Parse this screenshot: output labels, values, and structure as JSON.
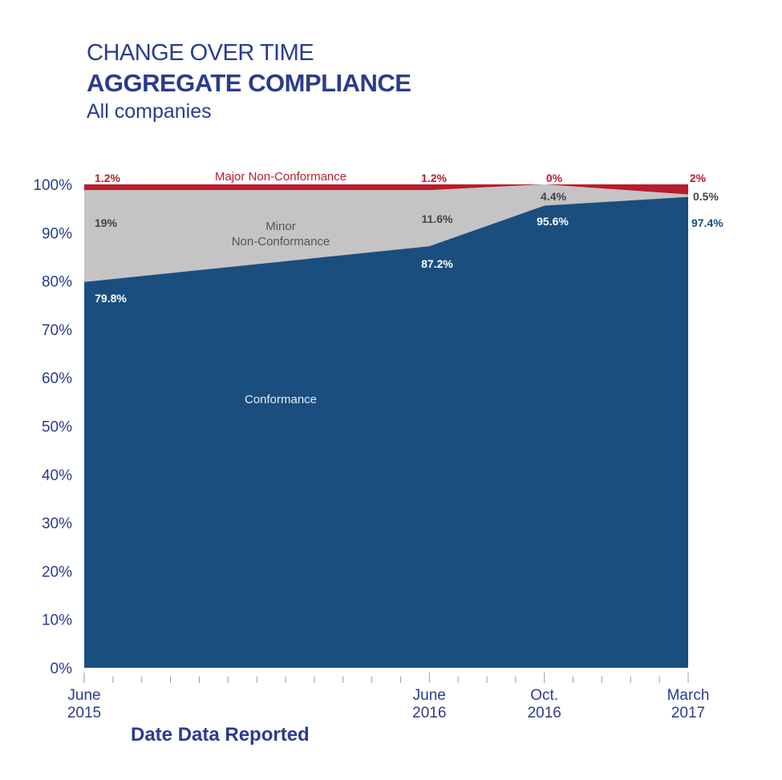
{
  "header": {
    "line1": "CHANGE OVER TIME",
    "line2": "AGGREGATE COMPLIANCE",
    "line3": "All companies"
  },
  "colors": {
    "conformance": "#1a4e7e",
    "minor": "#c6c3c5",
    "major": "#b91c2b",
    "axis_text": "#2a3c8e",
    "label_dark": "#444444"
  },
  "chart_data": {
    "type": "area",
    "stacked": true,
    "xlabel": "Date Data Reported",
    "ylabel": "",
    "ylim": [
      0,
      100
    ],
    "yticks": [
      "0%",
      "10%",
      "20%",
      "30%",
      "40%",
      "50%",
      "60%",
      "70%",
      "80%",
      "90%",
      "100%"
    ],
    "x": [
      "June 2015",
      "June 2016",
      "Oct. 2016",
      "March 2017"
    ],
    "x_months": [
      0,
      12,
      16,
      21
    ],
    "x_tick_labels": [
      [
        "June",
        "2015"
      ],
      [
        "June",
        "2016"
      ],
      [
        "Oct.",
        "2016"
      ],
      [
        "March",
        "2017"
      ]
    ],
    "series": [
      {
        "name": "Conformance",
        "values": [
          79.8,
          87.2,
          95.6,
          97.4
        ],
        "labels": [
          "79.8%",
          "87.2%",
          "95.6%",
          "97.4%"
        ]
      },
      {
        "name": "Minor Non-Conformance",
        "name_lines": [
          "Minor",
          "Non-Conformance"
        ],
        "values": [
          19,
          11.6,
          4.4,
          0.5
        ],
        "labels": [
          "19%",
          "11.6%",
          "4.4%",
          "0.5%"
        ]
      },
      {
        "name": "Major Non-Conformance",
        "values": [
          1.2,
          1.2,
          0,
          2
        ],
        "labels": [
          "1.2%",
          "1.2%",
          "0%",
          "2%"
        ]
      }
    ]
  }
}
